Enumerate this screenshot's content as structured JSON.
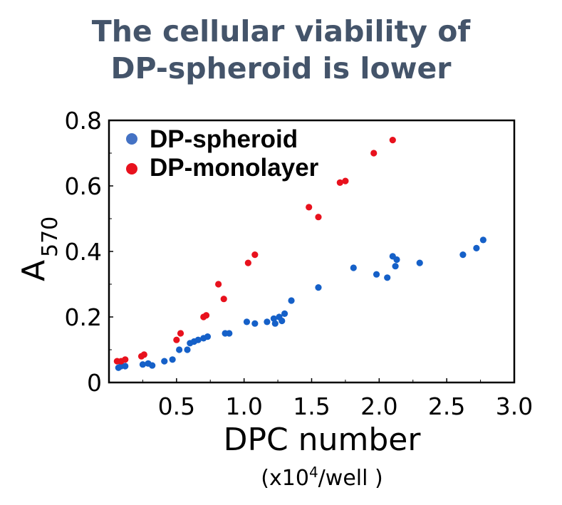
{
  "title_line1": "The cellular viability of",
  "title_line2": "DP-spheroid is lower",
  "chart_data": {
    "type": "scatter",
    "xlabel": "DPC number",
    "xunit_pre": "(x10",
    "xunit_sup": "4",
    "xunit_post": "/well )",
    "ylabel_main": "A",
    "ylabel_sub": "570",
    "xlim": [
      0.0,
      3.0
    ],
    "ylim": [
      0.0,
      0.8
    ],
    "xticks": [
      0.5,
      1.0,
      1.5,
      2.0,
      2.5,
      3.0
    ],
    "xtick_labels": [
      "0.5",
      "1.0",
      "1.5",
      "2.0",
      "2.5",
      "3.0"
    ],
    "yticks": [
      0.0,
      0.2,
      0.4,
      0.6,
      0.8
    ],
    "ytick_labels": [
      "0",
      "0.2",
      "0.4",
      "0.6",
      "0.8"
    ],
    "legend_position": "top-left",
    "series": [
      {
        "name": "DP-spheroid",
        "color": "#1560c8",
        "legend_color": "#4472c4",
        "points": [
          [
            0.07,
            0.045
          ],
          [
            0.09,
            0.05
          ],
          [
            0.12,
            0.05
          ],
          [
            0.25,
            0.055
          ],
          [
            0.29,
            0.058
          ],
          [
            0.32,
            0.052
          ],
          [
            0.41,
            0.065
          ],
          [
            0.47,
            0.07
          ],
          [
            0.52,
            0.1
          ],
          [
            0.58,
            0.1
          ],
          [
            0.6,
            0.12
          ],
          [
            0.63,
            0.125
          ],
          [
            0.66,
            0.13
          ],
          [
            0.7,
            0.135
          ],
          [
            0.73,
            0.14
          ],
          [
            0.86,
            0.15
          ],
          [
            0.89,
            0.15
          ],
          [
            1.02,
            0.185
          ],
          [
            1.08,
            0.18
          ],
          [
            1.17,
            0.185
          ],
          [
            1.22,
            0.195
          ],
          [
            1.23,
            0.18
          ],
          [
            1.26,
            0.2
          ],
          [
            1.28,
            0.188
          ],
          [
            1.3,
            0.21
          ],
          [
            1.35,
            0.25
          ],
          [
            1.55,
            0.29
          ],
          [
            1.81,
            0.35
          ],
          [
            1.98,
            0.33
          ],
          [
            2.06,
            0.32
          ],
          [
            2.1,
            0.385
          ],
          [
            2.12,
            0.355
          ],
          [
            2.13,
            0.375
          ],
          [
            2.3,
            0.365
          ],
          [
            2.62,
            0.39
          ],
          [
            2.72,
            0.41
          ],
          [
            2.77,
            0.435
          ]
        ]
      },
      {
        "name": "DP-monolayer",
        "color": "#e8111d",
        "legend_color": "#e8111d",
        "points": [
          [
            0.06,
            0.065
          ],
          [
            0.09,
            0.065
          ],
          [
            0.12,
            0.07
          ],
          [
            0.24,
            0.08
          ],
          [
            0.26,
            0.085
          ],
          [
            0.5,
            0.13
          ],
          [
            0.53,
            0.15
          ],
          [
            0.7,
            0.2
          ],
          [
            0.72,
            0.205
          ],
          [
            0.81,
            0.3
          ],
          [
            0.85,
            0.255
          ],
          [
            1.03,
            0.365
          ],
          [
            1.08,
            0.39
          ],
          [
            1.48,
            0.535
          ],
          [
            1.55,
            0.505
          ],
          [
            1.71,
            0.61
          ],
          [
            1.75,
            0.615
          ],
          [
            1.96,
            0.7
          ],
          [
            2.1,
            0.74
          ]
        ]
      }
    ]
  }
}
